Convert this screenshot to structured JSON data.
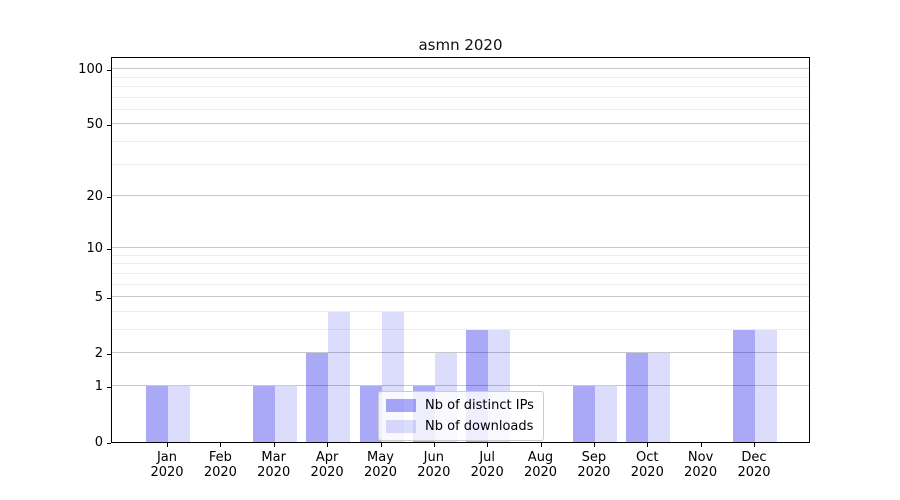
{
  "chart_data": {
    "type": "bar",
    "title": "asmn 2020",
    "categories": [
      "Jan",
      "Feb",
      "Mar",
      "Apr",
      "May",
      "Jun",
      "Jul",
      "Aug",
      "Sep",
      "Oct",
      "Nov",
      "Dec"
    ],
    "x_year_label": "2020",
    "series": [
      {
        "name": "Nb of distinct IPs",
        "color": "rgba(10,10,232,0.35)",
        "values": [
          1,
          0,
          1,
          2,
          1,
          1,
          3,
          0,
          1,
          2,
          0,
          3
        ]
      },
      {
        "name": "Nb of downloads",
        "color": "rgba(10,10,232,0.14)",
        "values": [
          1,
          0,
          1,
          4,
          4,
          2,
          3,
          0,
          1,
          2,
          0,
          3
        ]
      }
    ],
    "yscale": "log1p",
    "ylim": [
      0,
      117.7
    ],
    "yticks": [
      0,
      1,
      2,
      5,
      10,
      20,
      50,
      100
    ],
    "minor_gridlines": [
      3,
      4,
      6,
      7,
      8,
      9,
      30,
      40,
      60,
      70,
      80,
      90
    ],
    "grid": "horizontal",
    "legend_position": "lower center",
    "colors": {
      "bar_distinct_ips": "rgba(10,10,232,0.35)",
      "bar_downloads": "rgba(10,10,232,0.14)",
      "major_grid": "#c8c8c8",
      "minor_grid": "#ededed",
      "spine": "#000000",
      "legend_border": "#cccccc",
      "legend_bg": "rgba(255,255,255,0.8)"
    }
  }
}
